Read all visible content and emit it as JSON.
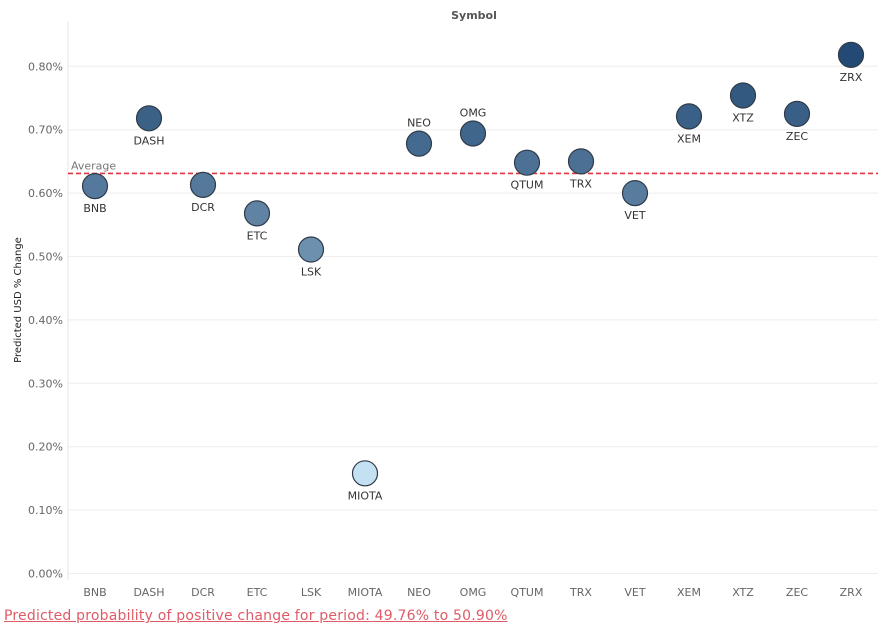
{
  "chart_data": {
    "type": "scatter",
    "column_header": "Symbol",
    "ylabel": "Predicted USD % Change",
    "ylim": [
      0,
      0.85
    ],
    "y_ticks": [
      "0.00%",
      "0.10%",
      "0.20%",
      "0.30%",
      "0.40%",
      "0.50%",
      "0.60%",
      "0.70%",
      "0.80%"
    ],
    "y_tick_values": [
      0,
      0.1,
      0.2,
      0.3,
      0.4,
      0.5,
      0.6,
      0.7,
      0.8
    ],
    "categories": [
      "BNB",
      "DASH",
      "DCR",
      "ETC",
      "LSK",
      "MIOTA",
      "NEO",
      "OMG",
      "QTUM",
      "TRX",
      "VET",
      "XEM",
      "XTZ",
      "ZEC",
      "ZRX"
    ],
    "values": [
      0.611,
      0.718,
      0.613,
      0.568,
      0.511,
      0.158,
      0.678,
      0.694,
      0.648,
      0.65,
      0.6,
      0.721,
      0.754,
      0.725,
      0.818
    ],
    "point_labels": [
      "BNB",
      "DASH",
      "DCR",
      "ETC",
      "LSK",
      "MIOTA",
      "NEO",
      "OMG",
      "QTUM",
      "TRX",
      "VET",
      "XEM",
      "XTZ",
      "ZEC",
      "ZRX"
    ],
    "label_positions": [
      "below",
      "below",
      "below",
      "below",
      "below",
      "below",
      "above",
      "above",
      "below",
      "below",
      "below",
      "below",
      "below",
      "below",
      "below"
    ],
    "reference_line": {
      "label": "Average",
      "value": 0.631,
      "color": "#e0353d",
      "style": "dashed"
    },
    "color_scale": {
      "low": "#c3e1f2",
      "high": "#234a74",
      "domain": [
        0.158,
        0.818
      ]
    },
    "grid": true,
    "legend": "none"
  },
  "footer": {
    "note": "Predicted probability of positive change for period:  49.76% to 50.90%"
  }
}
